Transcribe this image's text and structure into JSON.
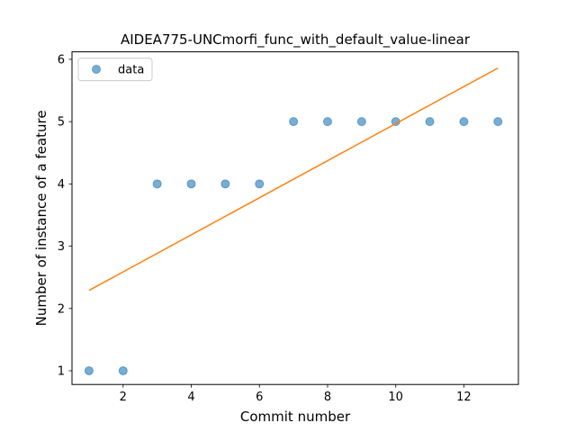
{
  "chart_data": {
    "type": "scatter",
    "title": "AIDEA775-UNCmorfi_func_with_default_value-linear",
    "xlabel": "Commit number",
    "ylabel": "Number of instance of a feature",
    "xlim": [
      0.5,
      13.6
    ],
    "ylim": [
      0.78,
      6.12
    ],
    "xticks": [
      2,
      4,
      6,
      8,
      10,
      12
    ],
    "yticks": [
      1,
      2,
      3,
      4,
      5,
      6
    ],
    "legend_placement": "top-left",
    "grid": false,
    "series": [
      {
        "name": "data",
        "kind": "scatter",
        "color": "#1f77b4",
        "x": [
          1,
          2,
          3,
          4,
          5,
          6,
          7,
          8,
          9,
          10,
          11,
          12,
          13
        ],
        "y": [
          1,
          1,
          4,
          4,
          4,
          4,
          5,
          5,
          5,
          5,
          5,
          5,
          5
        ]
      },
      {
        "kind": "line",
        "color": "#ff7f0e",
        "x": [
          1,
          13
        ],
        "y": [
          2.29,
          5.86
        ]
      }
    ]
  }
}
